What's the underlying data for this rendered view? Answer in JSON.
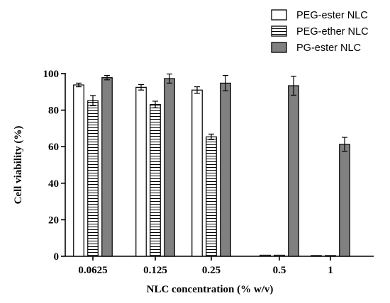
{
  "chart_data": {
    "type": "bar",
    "xlabel": "NLC concentration (% w/v)",
    "ylabel": "Cell viability (%)",
    "ylim": [
      0,
      100
    ],
    "yticks": [
      0,
      20,
      40,
      60,
      80,
      100
    ],
    "categories": [
      "0.0625",
      "0.125",
      "0.25",
      "0.5",
      "1"
    ],
    "legend_position": "top-right",
    "series": [
      {
        "name": "PEG-ester NLC",
        "fill": "white",
        "values": [
          93.8,
          92.5,
          91.0,
          0.6,
          0.4
        ],
        "errors": [
          1.0,
          1.5,
          1.8,
          0.2,
          0.2
        ]
      },
      {
        "name": "PEG-ether NLC",
        "fill": "horizontal-stripes",
        "values": [
          85.2,
          83.1,
          65.4,
          0.6,
          0.4
        ],
        "errors": [
          2.8,
          1.8,
          1.5,
          0.2,
          0.2
        ]
      },
      {
        "name": "PG-ester NLC",
        "fill": "#808080",
        "values": [
          97.8,
          97.3,
          94.8,
          93.4,
          61.3
        ],
        "errors": [
          1.2,
          2.5,
          4.2,
          5.2,
          3.8
        ]
      }
    ]
  }
}
